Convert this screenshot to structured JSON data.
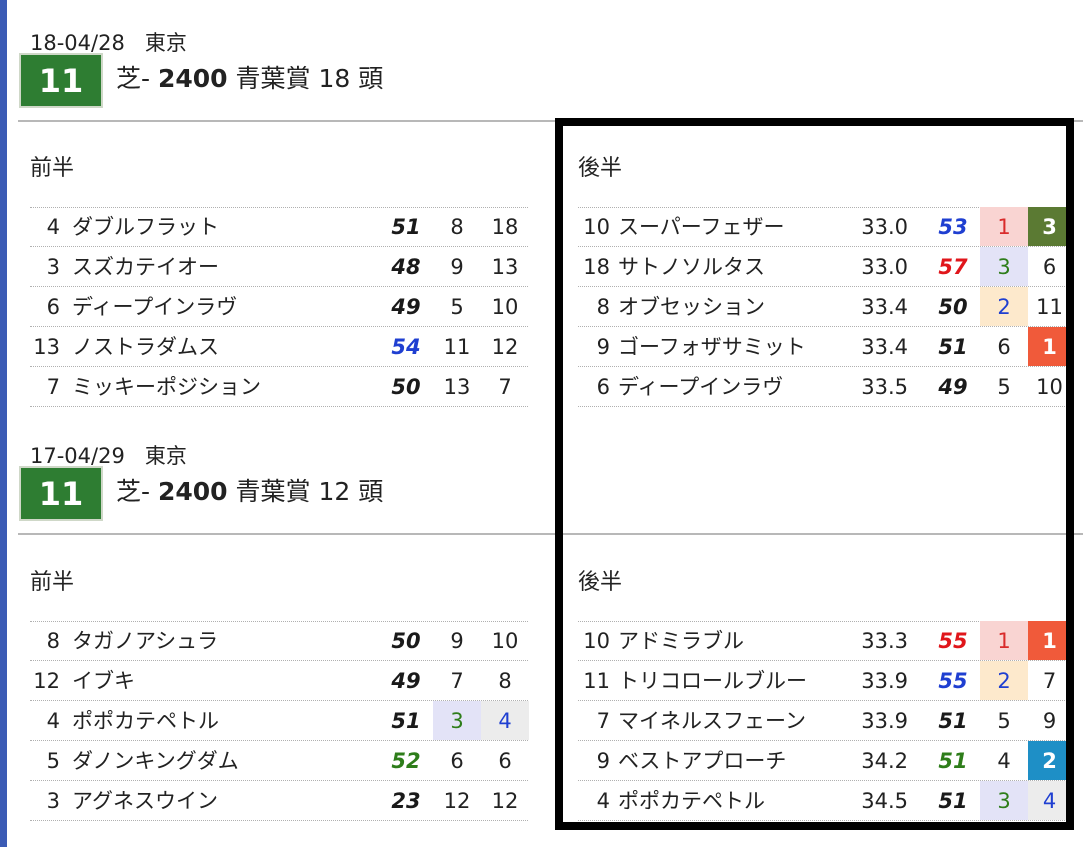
{
  "races": [
    {
      "date": "18-04/28",
      "venue": "東京",
      "race_no": "11",
      "surface": "芝-",
      "distance": "2400",
      "name": "青葉賞",
      "field": "18",
      "field_unit": "頭",
      "first_half_label": "前半",
      "second_half_label": "後半",
      "first_half": [
        {
          "no": "4",
          "name": "ダブルフラット",
          "idx": "51",
          "idx_color": "black",
          "a": "8",
          "b": "18"
        },
        {
          "no": "3",
          "name": "スズカテイオー",
          "idx": "48",
          "idx_color": "black",
          "a": "9",
          "b": "13"
        },
        {
          "no": "6",
          "name": "ディープインラヴ",
          "idx": "49",
          "idx_color": "black",
          "a": "5",
          "b": "10"
        },
        {
          "no": "13",
          "name": "ノストラダムス",
          "idx": "54",
          "idx_color": "blue",
          "a": "11",
          "b": "12"
        },
        {
          "no": "7",
          "name": "ミッキーポジション",
          "idx": "50",
          "idx_color": "black",
          "a": "13",
          "b": "7"
        }
      ],
      "second_half": [
        {
          "no": "10",
          "name": "スーパーフェザー",
          "time": "33.0",
          "idx": "53",
          "idx_color": "blue",
          "a": "1",
          "a_style": "pink",
          "b": "3",
          "b_style": "olive"
        },
        {
          "no": "18",
          "name": "サトノソルタス",
          "time": "33.0",
          "idx": "57",
          "idx_color": "red",
          "a": "3",
          "a_style": "lav",
          "b": "6",
          "b_style": "none"
        },
        {
          "no": "8",
          "name": "オブセッション",
          "time": "33.4",
          "idx": "50",
          "idx_color": "black",
          "a": "2",
          "a_style": "cream",
          "b": "11",
          "b_style": "none"
        },
        {
          "no": "9",
          "name": "ゴーフォザサミット",
          "time": "33.4",
          "idx": "51",
          "idx_color": "black",
          "a": "6",
          "a_style": "none",
          "b": "1",
          "b_style": "orange"
        },
        {
          "no": "6",
          "name": "ディープインラヴ",
          "time": "33.5",
          "idx": "49",
          "idx_color": "black",
          "a": "5",
          "a_style": "none",
          "b": "10",
          "b_style": "none"
        }
      ]
    },
    {
      "date": "17-04/29",
      "venue": "東京",
      "race_no": "11",
      "surface": "芝-",
      "distance": "2400",
      "name": "青葉賞",
      "field": "12",
      "field_unit": "頭",
      "first_half_label": "前半",
      "second_half_label": "後半",
      "first_half": [
        {
          "no": "8",
          "name": "タガノアシュラ",
          "idx": "50",
          "idx_color": "black",
          "a": "9",
          "a_style": "none",
          "b": "10",
          "b_style": "none"
        },
        {
          "no": "12",
          "name": "イブキ",
          "idx": "49",
          "idx_color": "black",
          "a": "7",
          "a_style": "none",
          "b": "8",
          "b_style": "none"
        },
        {
          "no": "4",
          "name": "ポポカテペトル",
          "idx": "51",
          "idx_color": "black",
          "a": "3",
          "a_style": "lav",
          "b": "4",
          "b_style": "grey"
        },
        {
          "no": "5",
          "name": "ダノンキングダム",
          "idx": "52",
          "idx_color": "green",
          "a": "6",
          "a_style": "none",
          "b": "6",
          "b_style": "none"
        },
        {
          "no": "3",
          "name": "アグネスウイン",
          "idx": "23",
          "idx_color": "black",
          "a": "12",
          "a_style": "none",
          "b": "12",
          "b_style": "none"
        }
      ],
      "second_half": [
        {
          "no": "10",
          "name": "アドミラブル",
          "time": "33.3",
          "idx": "55",
          "idx_color": "red",
          "a": "1",
          "a_style": "pink",
          "b": "1",
          "b_style": "orange"
        },
        {
          "no": "11",
          "name": "トリコロールブルー",
          "time": "33.9",
          "idx": "55",
          "idx_color": "blue",
          "a": "2",
          "a_style": "cream",
          "b": "7",
          "b_style": "none"
        },
        {
          "no": "7",
          "name": "マイネルスフェーン",
          "time": "33.9",
          "idx": "51",
          "idx_color": "black",
          "a": "5",
          "a_style": "none",
          "b": "9",
          "b_style": "none"
        },
        {
          "no": "9",
          "name": "ベストアプローチ",
          "time": "34.2",
          "idx": "51",
          "idx_color": "green",
          "a": "4",
          "a_style": "none",
          "b": "2",
          "b_style": "teal"
        },
        {
          "no": "4",
          "name": "ポポカテペトル",
          "time": "34.5",
          "idx": "51",
          "idx_color": "black",
          "a": "3",
          "a_style": "lav",
          "b": "4",
          "b_style": "grey"
        }
      ]
    }
  ],
  "cell_styles": {
    "none": {
      "bg": "transparent",
      "fg": "#222222",
      "bold": false
    },
    "pink": {
      "bg": "#f9d4d2",
      "fg": "#d92b2b",
      "bold": false
    },
    "lav": {
      "bg": "#e3e3f7",
      "fg": "#2e7d1a",
      "bold": false
    },
    "cream": {
      "bg": "#fde9cc",
      "fg": "#1f3fd1",
      "bold": false
    },
    "grey": {
      "bg": "#ececec",
      "fg": "#1f3fd1",
      "bold": false
    },
    "olive": {
      "bg": "#5b7a33",
      "fg": "#ffffff",
      "bold": true
    },
    "orange": {
      "bg": "#f05a3a",
      "fg": "#ffffff",
      "bold": true
    },
    "teal": {
      "bg": "#1e8fc6",
      "fg": "#ffffff",
      "bold": true
    }
  }
}
